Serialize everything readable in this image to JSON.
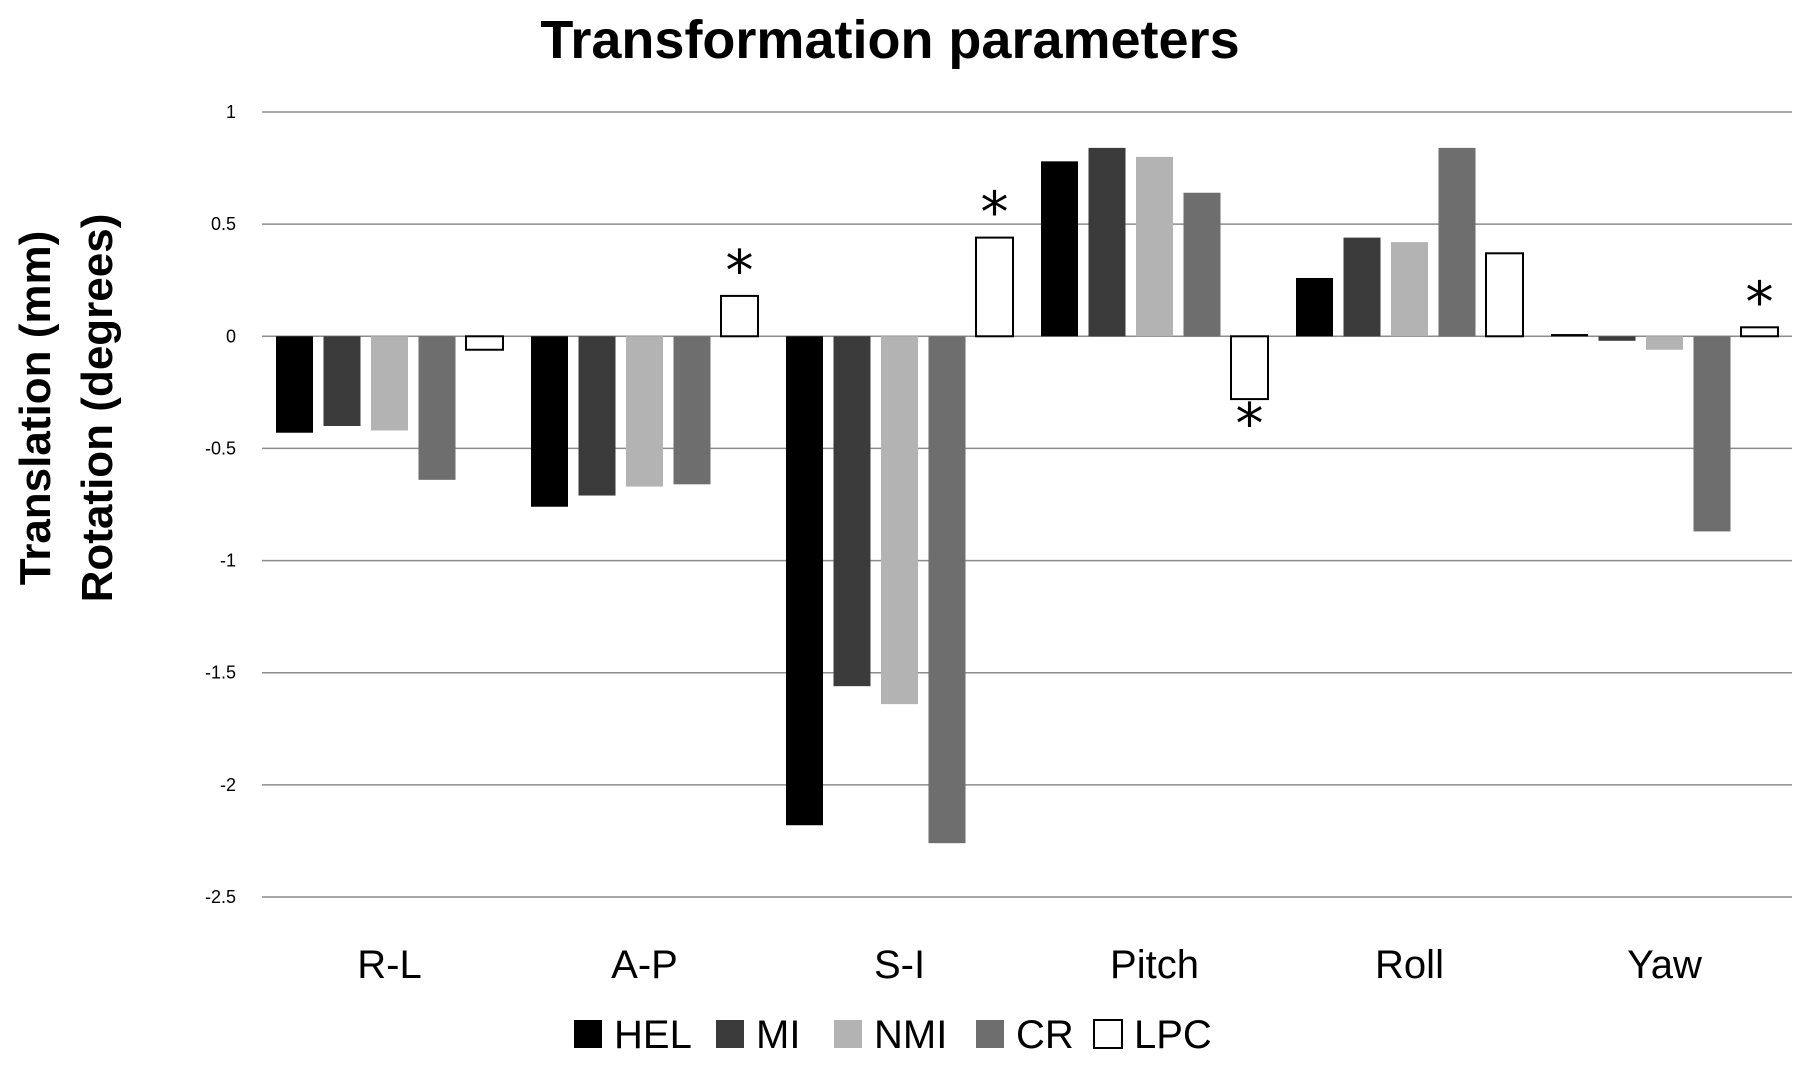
{
  "chart_data": {
    "type": "bar",
    "title": "Transformation parameters",
    "xlabel": "",
    "ylabel_lines": [
      "Translation (mm)",
      "Rotation (degrees)"
    ],
    "ylim": [
      -2.5,
      1
    ],
    "yticks": [
      1,
      0.5,
      0,
      -0.5,
      -1,
      -1.5,
      -2,
      -2.5
    ],
    "ytick_labels": [
      "1",
      "0.5",
      "0",
      "-0.5",
      "-1",
      "-1.5",
      "-2",
      "-2.5"
    ],
    "grid": true,
    "legend_position": "bottom",
    "categories": [
      "R-L",
      "A-P",
      "S-I",
      "Pitch",
      "Roll",
      "Yaw"
    ],
    "series": [
      {
        "name": "HEL",
        "color": "#000000",
        "values": [
          -0.43,
          -0.76,
          -2.18,
          0.78,
          0.26,
          0.01
        ]
      },
      {
        "name": "MI",
        "color": "#3b3b3b",
        "values": [
          -0.4,
          -0.71,
          -1.56,
          0.84,
          0.44,
          -0.02
        ]
      },
      {
        "name": "NMI",
        "color": "#b3b3b3",
        "values": [
          -0.42,
          -0.67,
          -1.64,
          0.8,
          0.42,
          -0.06
        ]
      },
      {
        "name": "CR",
        "color": "#6e6e6e",
        "values": [
          -0.64,
          -0.66,
          -2.26,
          0.64,
          0.84,
          -0.87
        ]
      },
      {
        "name": "LPC",
        "color": "#ffffff",
        "values": [
          -0.06,
          0.18,
          0.44,
          -0.28,
          0.37,
          0.04
        ]
      }
    ],
    "annotations": [
      {
        "text": "*",
        "category": "A-P",
        "series": "LPC"
      },
      {
        "text": "*",
        "category": "S-I",
        "series": "LPC"
      },
      {
        "text": "*",
        "category": "Pitch",
        "series": "LPC"
      },
      {
        "text": "*",
        "category": "Yaw",
        "series": "LPC"
      }
    ]
  }
}
